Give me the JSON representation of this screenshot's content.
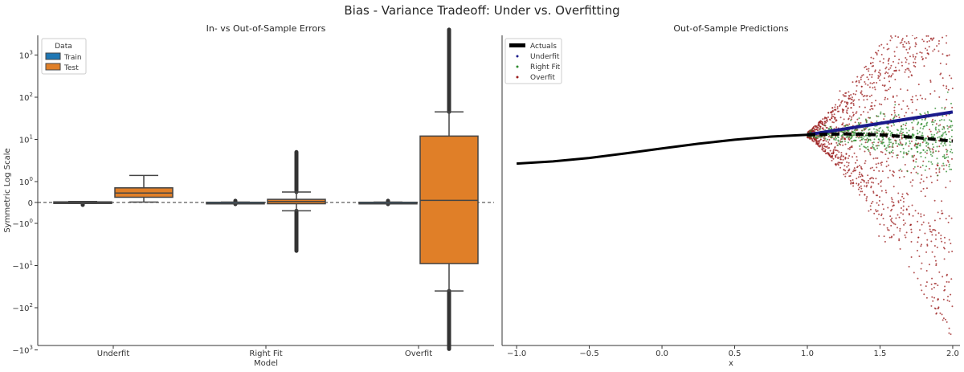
{
  "figure": {
    "suptitle": "Bias - Variance Tradeoff: Under vs. Overfitting"
  },
  "colors": {
    "train": "#1f77b4",
    "test": "#e07f28",
    "actuals": "#000000",
    "underfit": "#1a1a8c",
    "right_fit": "#2e8b2e",
    "overfit": "#9b1c1c"
  },
  "chart_data": [
    {
      "type": "box",
      "title": "In- vs Out-of-Sample Errors",
      "xlabel": "Model",
      "ylabel": "Symmetric Log Scale",
      "yscale": "symlog",
      "categories": [
        "Underfit",
        "Right Fit",
        "Overfit"
      ],
      "yticks": [
        "10^3",
        "10^2",
        "10^1",
        "10^0",
        "0",
        "-10^0",
        "-10^1",
        "-10^2",
        "-10^3"
      ],
      "reference_line": 0,
      "legend": {
        "title": "Data",
        "position": "top-left",
        "entries": [
          "Train",
          "Test"
        ]
      },
      "series": [
        {
          "name": "Train",
          "boxes": [
            {
              "category": "Underfit",
              "q1": -0.03,
              "median": 0,
              "q3": 0.03,
              "whisker_low": -0.05,
              "whisker_high": 0.05,
              "outliers_low": -0.12,
              "outliers_high": null
            },
            {
              "category": "Right Fit",
              "q1": -0.01,
              "median": 0,
              "q3": 0.01,
              "whisker_low": -0.02,
              "whisker_high": 0.02,
              "outliers_low": -0.08,
              "outliers_high": 0.08
            },
            {
              "category": "Overfit",
              "q1": -0.01,
              "median": 0,
              "q3": 0.01,
              "whisker_low": -0.02,
              "whisker_high": 0.02,
              "outliers_low": -0.08,
              "outliers_high": 0.08
            }
          ]
        },
        {
          "name": "Test",
          "boxes": [
            {
              "category": "Underfit",
              "q1": 0.25,
              "median": 0.45,
              "q3": 0.7,
              "whisker_low": 0.02,
              "whisker_high": 1.4,
              "outliers_low": null,
              "outliers_high": null
            },
            {
              "category": "Right Fit",
              "q1": -0.06,
              "median": 0.05,
              "q3": 0.15,
              "whisker_low": -0.4,
              "whisker_high": 0.5,
              "outliers_low": -4.5,
              "outliers_high": 5
            },
            {
              "category": "Overfit",
              "q1": -9,
              "median": 0.1,
              "q3": 12,
              "whisker_low": -40,
              "whisker_high": 45,
              "outliers_low": -950,
              "outliers_high": 4000
            }
          ]
        }
      ]
    },
    {
      "type": "scatter",
      "title": "Out-of-Sample Predictions",
      "xlabel": "x",
      "ylabel": "",
      "xlim": [
        -1.1,
        2.05
      ],
      "ylim": [
        -11,
        6
      ],
      "xticks": [
        -1.0,
        -0.5,
        0.0,
        0.5,
        1.0,
        1.5,
        2.0
      ],
      "legend": {
        "position": "top-left",
        "entries": [
          "Actuals",
          "Underfit",
          "Right Fit",
          "Overfit"
        ]
      },
      "series": [
        {
          "name": "Actuals",
          "kind": "line",
          "x": [
            -1.0,
            -0.75,
            -0.5,
            -0.25,
            0.0,
            0.25,
            0.5,
            0.75,
            1.0,
            1.25,
            1.5,
            1.75,
            2.0
          ],
          "y": [
            -1.03,
            -0.91,
            -0.72,
            -0.47,
            -0.2,
            0.06,
            0.28,
            0.45,
            0.55,
            0.6,
            0.55,
            0.4,
            0.2
          ]
        },
        {
          "name": "Underfit",
          "kind": "line",
          "x": [
            1.0,
            2.0
          ],
          "y": [
            0.55,
            1.8
          ]
        },
        {
          "name": "Right Fit",
          "kind": "scatter",
          "x_range": [
            1.0,
            2.0
          ],
          "center": "actuals",
          "spread_max": 2.2,
          "count": 600
        },
        {
          "name": "Overfit",
          "kind": "scatter",
          "x_range": [
            1.0,
            2.0
          ],
          "center": "actuals",
          "spread_max": 11,
          "count": 1400
        }
      ]
    }
  ]
}
